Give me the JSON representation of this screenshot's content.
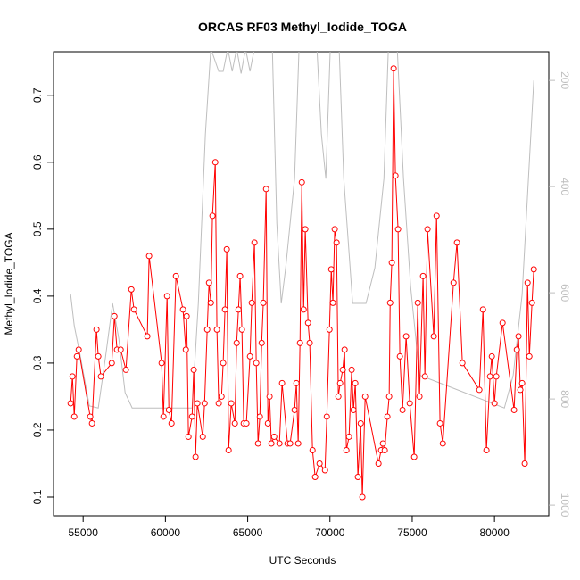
{
  "chart_data": {
    "type": "line",
    "title": "ORCAS RF03 Methyl_Iodide_TOGA",
    "xlabel": "UTC Seconds",
    "ylabel": "Methyl_Iodide_TOGA",
    "xlim": [
      53200,
      83300
    ],
    "ylim": [
      0.072,
      0.765
    ],
    "y2lim": [
      1020,
      146
    ],
    "xticks": [
      55000,
      60000,
      65000,
      70000,
      75000,
      80000
    ],
    "yticks": [
      0.1,
      0.2,
      0.3,
      0.4,
      0.5,
      0.6,
      0.7
    ],
    "y2ticks": [
      200,
      400,
      600,
      800,
      1000
    ],
    "series": [
      {
        "color": "#bebebe",
        "axis": "y2",
        "x": [
          54240,
          54460,
          54840,
          55380,
          55920,
          56360,
          56790,
          57170,
          57550,
          57980,
          61620,
          62000,
          62430,
          62760,
          63240,
          63510,
          63790,
          64060,
          64330,
          64600,
          64870,
          65140,
          65410,
          66500,
          66770,
          67040,
          67310,
          67580,
          67850,
          68120,
          69210,
          69480,
          69750,
          70020,
          70560,
          70840,
          71380,
          72190,
          72730,
          73280,
          73550,
          74090,
          74470,
          74900,
          75440,
          80600,
          81140,
          81680,
          82390
        ],
        "values": [
          603,
          662,
          721,
          813,
          817,
          721,
          620,
          687,
          788,
          817,
          817,
          620,
          301,
          140,
          183,
          183,
          140,
          183,
          140,
          187,
          140,
          183,
          140,
          140,
          469,
          620,
          553,
          469,
          385,
          140,
          140,
          301,
          385,
          140,
          140,
          385,
          620,
          620,
          553,
          385,
          140,
          140,
          385,
          587,
          755,
          817,
          755,
          603,
          200
        ]
      },
      {
        "color": "#ff0000",
        "marker": "circle",
        "x": [
          54240,
          54350,
          54460,
          54620,
          54730,
          55430,
          55540,
          55810,
          55920,
          56080,
          56740,
          56900,
          57060,
          57280,
          57600,
          57930,
          58090,
          58900,
          59010,
          59770,
          59880,
          60100,
          60210,
          60370,
          60640,
          61070,
          61240,
          61290,
          61400,
          61620,
          61720,
          61830,
          61940,
          62270,
          62380,
          62540,
          62650,
          62760,
          62860,
          63030,
          63130,
          63240,
          63410,
          63510,
          63620,
          63730,
          63840,
          64000,
          64220,
          64330,
          64440,
          64540,
          64650,
          64760,
          64920,
          65140,
          65250,
          65410,
          65520,
          65630,
          65740,
          65850,
          65950,
          66120,
          66230,
          66330,
          66440,
          66610,
          66930,
          67090,
          67420,
          67580,
          67850,
          67960,
          68070,
          68180,
          68290,
          68400,
          68500,
          68670,
          68770,
          68940,
          69100,
          69370,
          69700,
          69810,
          69970,
          70080,
          70180,
          70290,
          70400,
          70510,
          70620,
          70780,
          70890,
          71000,
          71160,
          71320,
          71430,
          71540,
          71700,
          71870,
          71970,
          72140,
          72950,
          73110,
          73220,
          73330,
          73490,
          73600,
          73660,
          73760,
          73870,
          73980,
          74140,
          74250,
          74410,
          74630,
          74850,
          75120,
          75340,
          75440,
          75660,
          75770,
          75930,
          76310,
          76480,
          76690,
          76860,
          77510,
          77720,
          78050,
          79080,
          79300,
          79510,
          79730,
          79840,
          80000,
          80110,
          80490,
          81190,
          81360,
          81460,
          81570,
          81680,
          81840,
          82010,
          82120,
          82280,
          82390
        ],
        "values": [
          0.24,
          0.28,
          0.22,
          0.31,
          0.32,
          0.22,
          0.21,
          0.35,
          0.31,
          0.28,
          0.3,
          0.37,
          0.32,
          0.32,
          0.29,
          0.41,
          0.38,
          0.34,
          0.46,
          0.3,
          0.22,
          0.4,
          0.23,
          0.21,
          0.43,
          0.38,
          0.32,
          0.37,
          0.19,
          0.22,
          0.29,
          0.16,
          0.24,
          0.19,
          0.24,
          0.35,
          0.42,
          0.39,
          0.52,
          0.6,
          0.35,
          0.24,
          0.25,
          0.3,
          0.38,
          0.47,
          0.17,
          0.24,
          0.21,
          0.33,
          0.38,
          0.43,
          0.35,
          0.21,
          0.21,
          0.31,
          0.39,
          0.48,
          0.3,
          0.18,
          0.22,
          0.33,
          0.39,
          0.56,
          0.21,
          0.25,
          0.18,
          0.19,
          0.18,
          0.27,
          0.18,
          0.18,
          0.23,
          0.27,
          0.18,
          0.33,
          0.57,
          0.38,
          0.5,
          0.36,
          0.33,
          0.17,
          0.13,
          0.15,
          0.14,
          0.22,
          0.35,
          0.44,
          0.39,
          0.5,
          0.48,
          0.25,
          0.27,
          0.29,
          0.32,
          0.17,
          0.19,
          0.29,
          0.23,
          0.27,
          0.13,
          0.21,
          0.1,
          0.25,
          0.15,
          0.17,
          0.18,
          0.17,
          0.22,
          0.25,
          0.39,
          0.45,
          0.74,
          0.58,
          0.5,
          0.31,
          0.23,
          0.34,
          0.24,
          0.16,
          0.39,
          0.25,
          0.43,
          0.28,
          0.5,
          0.34,
          0.52,
          0.21,
          0.18,
          0.42,
          0.48,
          0.3,
          0.26,
          0.38,
          0.17,
          0.28,
          0.31,
          0.24,
          0.28,
          0.36,
          0.23,
          0.32,
          0.34,
          0.26,
          0.27,
          0.15,
          0.42,
          0.31,
          0.39,
          0.44
        ]
      }
    ]
  }
}
